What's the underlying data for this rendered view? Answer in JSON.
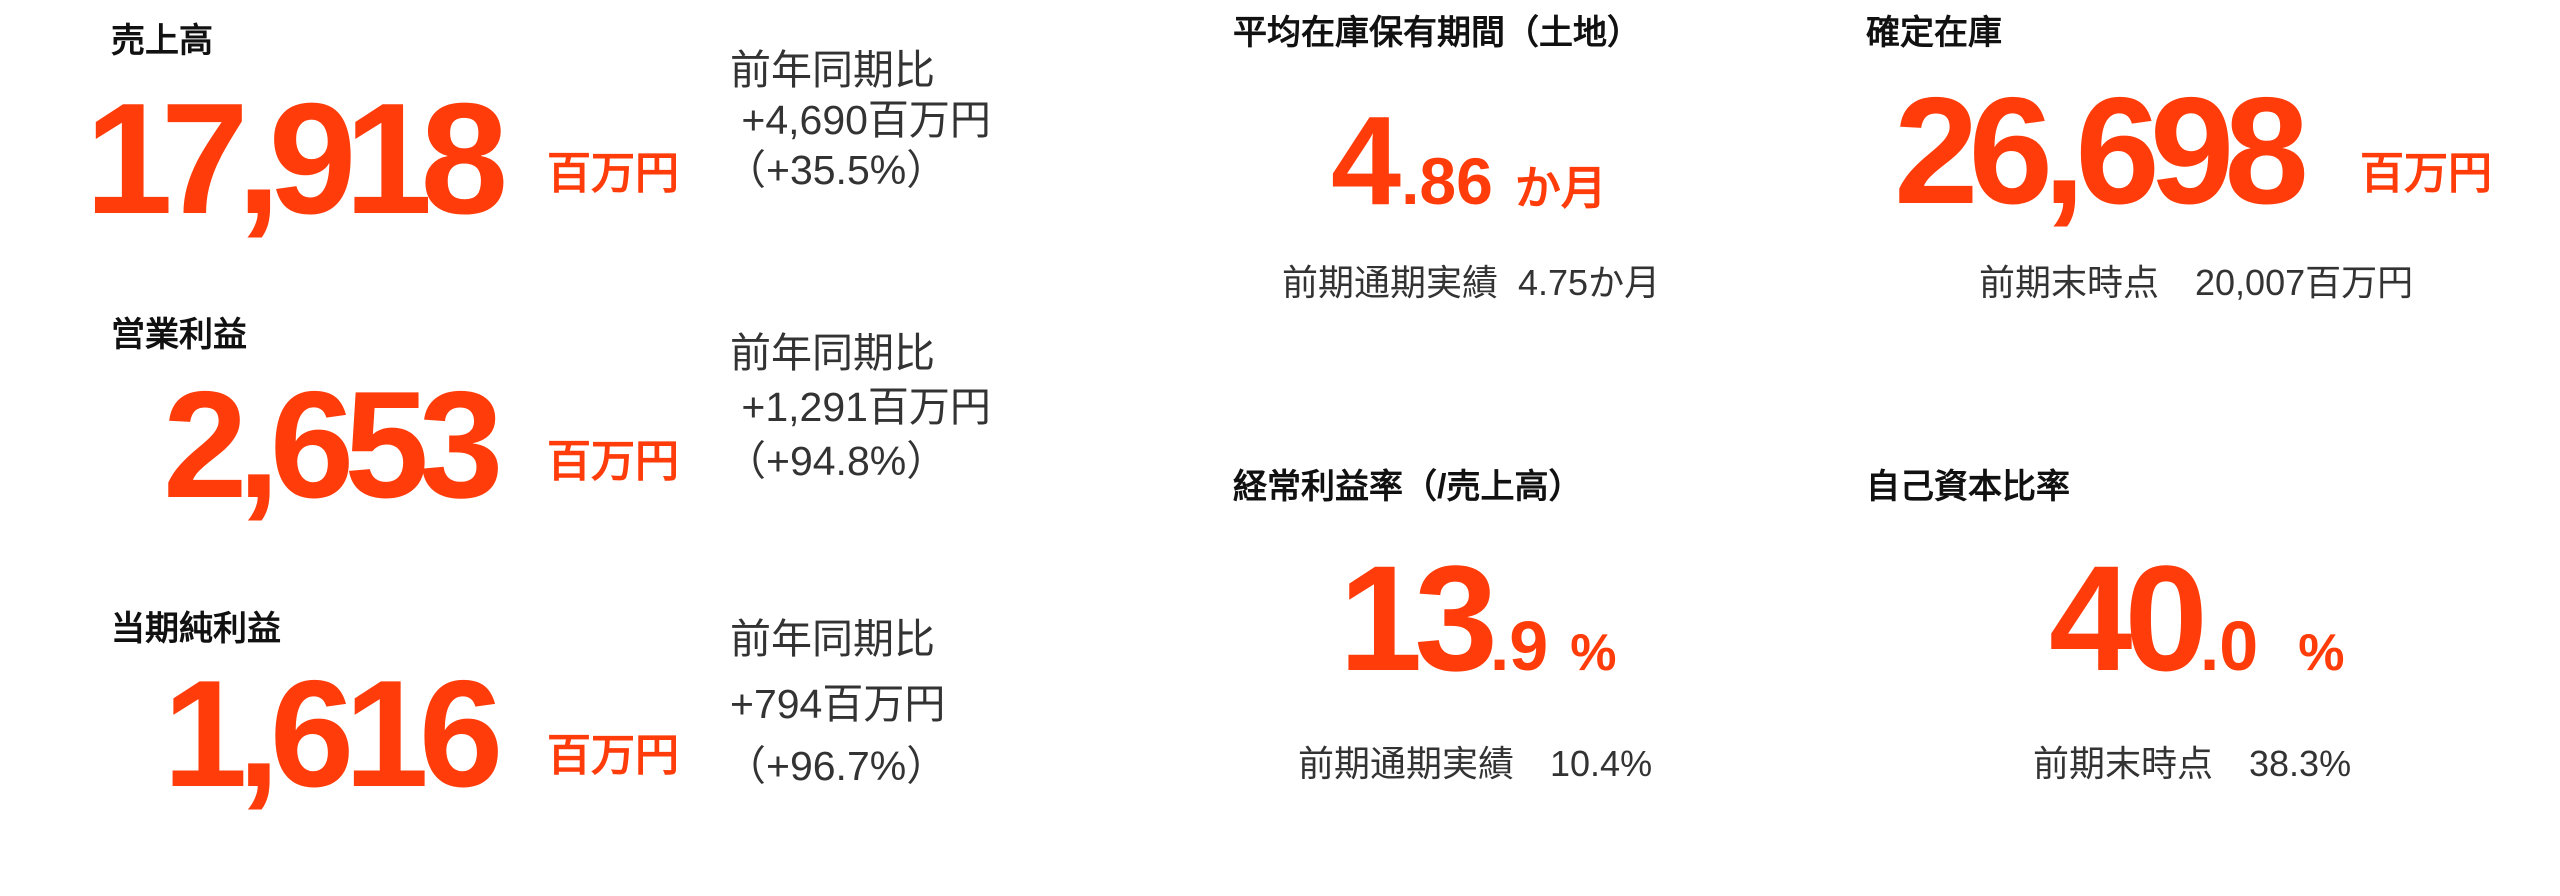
{
  "accent_color": "#ff3c0a",
  "left_metrics": [
    {
      "label": "売上高",
      "value": "17,918",
      "unit": "百万円",
      "compare_label": "前年同期比",
      "compare_amount": " +4,690百万円",
      "compare_pct": "（+35.5%）"
    },
    {
      "label": "営業利益",
      "value": "2,653",
      "unit": "百万円",
      "compare_label": "前年同期比",
      "compare_amount": " +1,291百万円",
      "compare_pct": "（+94.8%）"
    },
    {
      "label": "当期純利益",
      "value": "1,616",
      "unit": "百万円",
      "compare_label": "前年同期比",
      "compare_amount": "+794百万円",
      "compare_pct": "（+96.7%）"
    }
  ],
  "inventory_period": {
    "label": "平均在庫保有期間（土地）",
    "value_int": "4",
    "value_dec": ".86",
    "unit": "か月",
    "sub": "前期通期実績  4.75か月"
  },
  "fixed_inventory": {
    "label": "確定在庫",
    "value": "26,698",
    "unit": "百万円",
    "sub": "前期末時点　20,007百万円"
  },
  "ordinary_margin": {
    "label": "経常利益率（/売上高）",
    "value_int": "13",
    "value_dec": ".9",
    "unit": "%",
    "sub": "前期通期実績　10.4%"
  },
  "equity_ratio": {
    "label": "自己資本比率",
    "value_int": "40",
    "value_dec": ".0",
    "unit": "%",
    "sub": "前期末時点　38.3%"
  }
}
